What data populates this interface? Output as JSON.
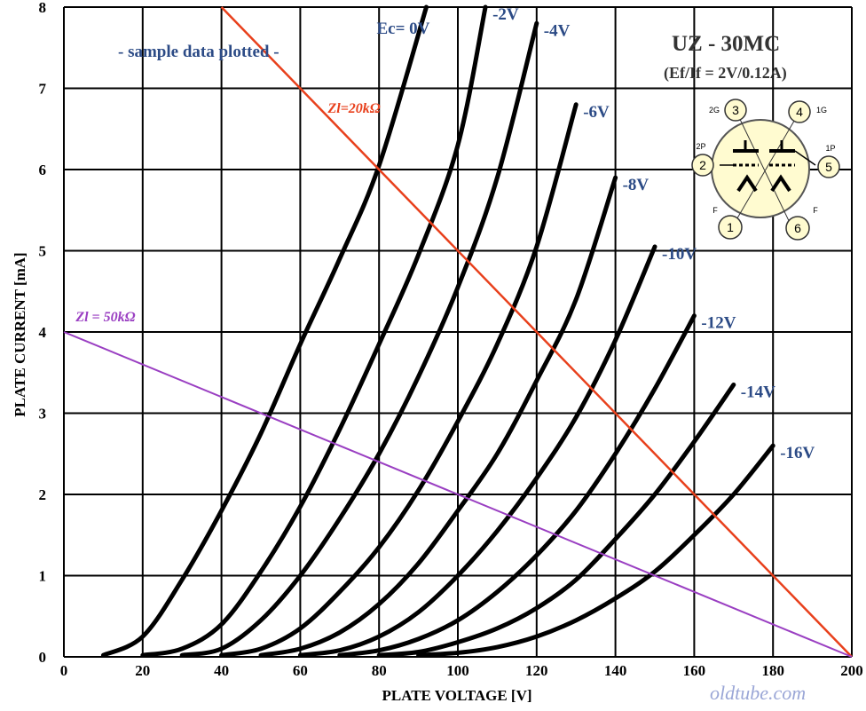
{
  "chart_data": {
    "type": "line",
    "title": "UZ - 30MC",
    "subtitle": "(Ef/If = 2V/0.12A)",
    "note": "- sample data plotted -",
    "xlabel": "PLATE VOLTAGE   [V]",
    "ylabel": "PLATE CURRENT  [mA]",
    "xlim": [
      0,
      200
    ],
    "ylim": [
      0,
      8
    ],
    "xticks": [
      "0",
      "20",
      "40",
      "60",
      "80",
      "100",
      "120",
      "140",
      "160",
      "180",
      "200"
    ],
    "yticks": [
      "0",
      "1",
      "2",
      "3",
      "4",
      "5",
      "6",
      "7",
      "8"
    ],
    "grid": true,
    "series": [
      {
        "name": "Ec= 0V",
        "x": [
          10,
          20,
          30,
          40,
          50,
          60,
          70,
          80,
          92
        ],
        "y": [
          0.02,
          0.25,
          0.95,
          1.8,
          2.75,
          3.85,
          4.9,
          6.05,
          8.0
        ]
      },
      {
        "name": "-2V",
        "x": [
          20,
          30,
          40,
          50,
          60,
          70,
          80,
          90,
          100,
          107
        ],
        "y": [
          0.02,
          0.1,
          0.4,
          1.05,
          1.85,
          2.8,
          3.85,
          4.95,
          6.3,
          8.0
        ]
      },
      {
        "name": "-4V",
        "x": [
          30,
          40,
          50,
          60,
          70,
          80,
          90,
          100,
          110,
          120
        ],
        "y": [
          0.02,
          0.1,
          0.45,
          1.0,
          1.7,
          2.5,
          3.45,
          4.55,
          5.9,
          7.8
        ]
      },
      {
        "name": "-6V",
        "x": [
          40,
          50,
          60,
          70,
          80,
          90,
          100,
          110,
          120,
          130
        ],
        "y": [
          0.02,
          0.1,
          0.35,
          0.8,
          1.35,
          2.05,
          2.9,
          3.85,
          5.05,
          6.8
        ]
      },
      {
        "name": "-8V",
        "x": [
          50,
          60,
          70,
          80,
          90,
          100,
          110,
          120,
          130,
          140
        ],
        "y": [
          0.02,
          0.1,
          0.3,
          0.65,
          1.15,
          1.8,
          2.5,
          3.4,
          4.4,
          5.9
        ]
      },
      {
        "name": "-10V",
        "x": [
          60,
          70,
          80,
          90,
          100,
          110,
          120,
          130,
          140,
          150
        ],
        "y": [
          0.02,
          0.08,
          0.25,
          0.55,
          1.0,
          1.55,
          2.2,
          2.95,
          3.9,
          5.05
        ]
      },
      {
        "name": "-12V",
        "x": [
          70,
          80,
          90,
          100,
          110,
          120,
          130,
          140,
          150,
          160
        ],
        "y": [
          0.02,
          0.08,
          0.22,
          0.45,
          0.8,
          1.25,
          1.8,
          2.5,
          3.3,
          4.2
        ]
      },
      {
        "name": "-14V",
        "x": [
          80,
          90,
          100,
          110,
          120,
          130,
          140,
          150,
          160,
          170
        ],
        "y": [
          0.02,
          0.06,
          0.18,
          0.35,
          0.6,
          0.95,
          1.45,
          2.0,
          2.65,
          3.35
        ]
      },
      {
        "name": "-16V",
        "x": [
          90,
          100,
          110,
          120,
          130,
          140,
          150,
          160,
          170,
          180
        ],
        "y": [
          0.02,
          0.05,
          0.12,
          0.25,
          0.45,
          0.72,
          1.05,
          1.5,
          2.0,
          2.6
        ]
      }
    ],
    "load_lines": [
      {
        "name": "Zl=20kΩ",
        "x": [
          40,
          200
        ],
        "y": [
          8,
          0
        ],
        "color": "#e8401c"
      },
      {
        "name": "Zl = 50kΩ",
        "x": [
          0,
          200
        ],
        "y": [
          4,
          0
        ],
        "color": "#9a3fc2"
      }
    ]
  },
  "pinout": {
    "pins": [
      {
        "num": "3",
        "label": "2G"
      },
      {
        "num": "4",
        "label": "1G"
      },
      {
        "num": "2",
        "label": "2P"
      },
      {
        "num": "5",
        "label": "1P"
      },
      {
        "num": "1",
        "label": "F"
      },
      {
        "num": "6",
        "label": "F"
      }
    ]
  },
  "watermark": "oldtube.com",
  "colors": {
    "curve": "#000000",
    "label": "#2c4b86",
    "grid": "#000000",
    "base": "#fffbd0"
  }
}
